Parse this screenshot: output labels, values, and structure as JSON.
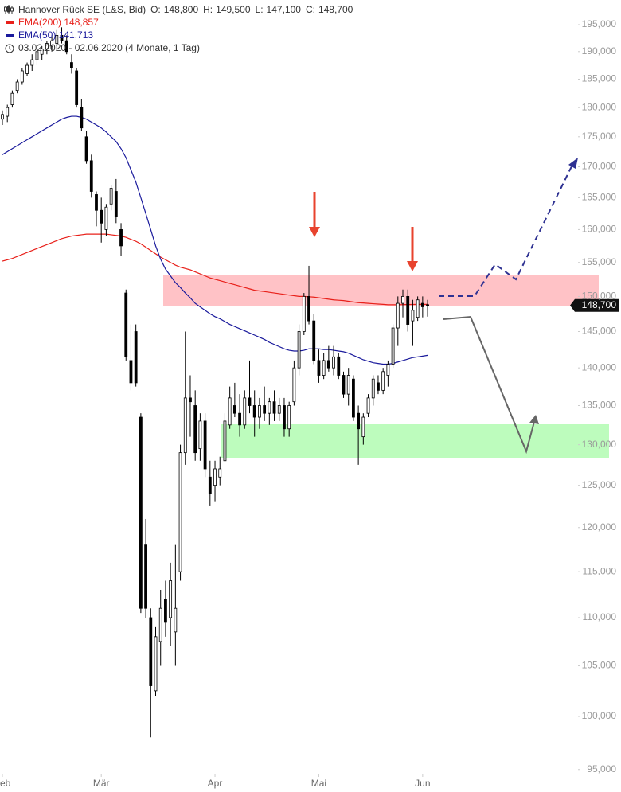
{
  "chart_data": {
    "type": "candlestick",
    "title": "Hannover Rück SE (L&S, Bid)",
    "quote": [
      {
        "key": "O:",
        "value": "148,800"
      },
      {
        "key": "H:",
        "value": "149,500"
      },
      {
        "key": "L:",
        "value": "147,100"
      },
      {
        "key": "C:",
        "value": "148,700"
      }
    ],
    "date_range": "03.02.2020 - 02.06.2020",
    "period": "(4 Monate, 1 Tag)",
    "log_scale": true,
    "grid": false,
    "up_color": "#ffffff",
    "down_color": "#000000",
    "ylim": [
      94400,
      199700
    ],
    "yticks": [
      {
        "value": 195000,
        "label": "195,000"
      },
      {
        "value": 190000,
        "label": "190,000"
      },
      {
        "value": 185000,
        "label": "185,000"
      },
      {
        "value": 180000,
        "label": "180,000"
      },
      {
        "value": 175000,
        "label": "175,000"
      },
      {
        "value": 170000,
        "label": "170,000"
      },
      {
        "value": 165000,
        "label": "165,000"
      },
      {
        "value": 160000,
        "label": "160,000"
      },
      {
        "value": 155000,
        "label": "155,000"
      },
      {
        "value": 150000,
        "label": "150,000"
      },
      {
        "value": 145000,
        "label": "145,000"
      },
      {
        "value": 140000,
        "label": "140,000"
      },
      {
        "value": 135000,
        "label": "135,000"
      },
      {
        "value": 130000,
        "label": "130,000"
      },
      {
        "value": 125000,
        "label": "125,000"
      },
      {
        "value": 120000,
        "label": "120,000"
      },
      {
        "value": 115000,
        "label": "115,000"
      },
      {
        "value": 110000,
        "label": "110,000"
      },
      {
        "value": 105000,
        "label": "105,000"
      },
      {
        "value": 100000,
        "label": "100,000"
      },
      {
        "value": 95000,
        "label": "95,000"
      }
    ],
    "last_price": {
      "value": 148700,
      "label": "148,700"
    },
    "categories": [
      "Feb",
      null,
      null,
      null,
      null,
      null,
      null,
      null,
      null,
      null,
      null,
      null,
      null,
      null,
      null,
      null,
      null,
      null,
      null,
      null,
      "Mär",
      null,
      null,
      null,
      null,
      null,
      null,
      null,
      null,
      null,
      null,
      null,
      null,
      null,
      null,
      null,
      null,
      null,
      null,
      null,
      null,
      null,
      null,
      "Apr",
      null,
      null,
      null,
      null,
      null,
      null,
      null,
      null,
      null,
      null,
      null,
      null,
      null,
      null,
      null,
      null,
      null,
      null,
      null,
      null,
      "Mai",
      null,
      null,
      null,
      null,
      null,
      null,
      null,
      null,
      null,
      null,
      null,
      null,
      null,
      null,
      null,
      null,
      null,
      null,
      null,
      null,
      "Jun",
      null
    ],
    "ohlc": [
      [
        178000,
        179500,
        177000,
        178800
      ],
      [
        178500,
        180500,
        177500,
        180000
      ],
      [
        180500,
        183000,
        180000,
        182500
      ],
      [
        183000,
        185000,
        182500,
        184500
      ],
      [
        184500,
        187000,
        184000,
        186500
      ],
      [
        186000,
        188000,
        185500,
        187500
      ],
      [
        187500,
        189500,
        186500,
        188500
      ],
      [
        188500,
        190500,
        187500,
        190000
      ],
      [
        189500,
        191000,
        188500,
        190500
      ],
      [
        190500,
        192000,
        189500,
        191500
      ],
      [
        191000,
        193000,
        190000,
        192000
      ],
      [
        191500,
        194000,
        190500,
        193000
      ],
      [
        193000,
        194500,
        191500,
        192000
      ],
      [
        192000,
        193000,
        189500,
        190000
      ],
      [
        188000,
        189500,
        186000,
        187000
      ],
      [
        186500,
        187000,
        180000,
        180500
      ],
      [
        180000,
        181500,
        176000,
        176500
      ],
      [
        175000,
        176000,
        170500,
        171000
      ],
      [
        171000,
        172000,
        165000,
        166000
      ],
      [
        165500,
        166000,
        160500,
        163000
      ],
      [
        163000,
        165000,
        158000,
        161000
      ],
      [
        160000,
        164000,
        159000,
        163500
      ],
      [
        164000,
        167000,
        163000,
        166500
      ],
      [
        166000,
        168000,
        161000,
        162000
      ],
      [
        160000,
        161000,
        156000,
        157500
      ],
      [
        150500,
        151000,
        141000,
        141500
      ],
      [
        141000,
        146000,
        137000,
        138000
      ],
      [
        145000,
        146000,
        137500,
        138000
      ],
      [
        133500,
        134000,
        110500,
        111000
      ],
      [
        118000,
        121000,
        110000,
        111000
      ],
      [
        110000,
        111000,
        98000,
        103000
      ],
      [
        102500,
        109000,
        102000,
        108000
      ],
      [
        107500,
        113000,
        105000,
        111000
      ],
      [
        112000,
        114000,
        108000,
        109500
      ],
      [
        110000,
        116000,
        107000,
        114000
      ],
      [
        108500,
        118000,
        105000,
        111000
      ],
      [
        115000,
        130000,
        114000,
        129000
      ],
      [
        129000,
        145000,
        127500,
        136000
      ],
      [
        136000,
        139000,
        131000,
        135500
      ],
      [
        135000,
        137000,
        128000,
        129000
      ],
      [
        129500,
        134000,
        128000,
        133000
      ],
      [
        133000,
        134000,
        126000,
        127000
      ],
      [
        126000,
        128000,
        122500,
        124000
      ],
      [
        125000,
        128000,
        123000,
        127000
      ],
      [
        126000,
        128500,
        125000,
        127000
      ],
      [
        128000,
        134000,
        128000,
        133000
      ],
      [
        132500,
        137500,
        132000,
        136000
      ],
      [
        135000,
        138000,
        133500,
        134000
      ],
      [
        134000,
        136500,
        131000,
        132500
      ],
      [
        132500,
        137000,
        132000,
        136000
      ],
      [
        136000,
        141000,
        134000,
        135000
      ],
      [
        135000,
        137000,
        131000,
        133500
      ],
      [
        133500,
        136000,
        132000,
        135000
      ],
      [
        135000,
        137500,
        133000,
        134000
      ],
      [
        134000,
        136000,
        132500,
        135500
      ],
      [
        135500,
        137000,
        133000,
        134000
      ],
      [
        134000,
        136000,
        133000,
        135000
      ],
      [
        135000,
        136000,
        131000,
        132000
      ],
      [
        132000,
        135500,
        131000,
        135000
      ],
      [
        135500,
        141000,
        135000,
        140000
      ],
      [
        140000,
        146000,
        139000,
        145000
      ],
      [
        145000,
        150500,
        144500,
        150000
      ],
      [
        150000,
        154500,
        146000,
        146500
      ],
      [
        146500,
        147500,
        140500,
        141000
      ],
      [
        141000,
        142500,
        138000,
        139000
      ],
      [
        139000,
        142000,
        138500,
        141000
      ],
      [
        141000,
        143000,
        139500,
        140000
      ],
      [
        140000,
        143000,
        139000,
        141500
      ],
      [
        141500,
        142000,
        138500,
        139000
      ],
      [
        139000,
        139500,
        136000,
        136500
      ],
      [
        136500,
        140000,
        135000,
        139000
      ],
      [
        138500,
        139000,
        133000,
        133500
      ],
      [
        134000,
        135000,
        127500,
        132000
      ],
      [
        131000,
        134000,
        130000,
        133500
      ],
      [
        134000,
        136500,
        133500,
        136000
      ],
      [
        136000,
        139000,
        135000,
        138500
      ],
      [
        138000,
        139000,
        136500,
        137000
      ],
      [
        137000,
        140000,
        136500,
        139500
      ],
      [
        139000,
        141000,
        137500,
        140500
      ],
      [
        140500,
        146000,
        140000,
        145500
      ],
      [
        145500,
        150000,
        143000,
        149000
      ],
      [
        149000,
        151000,
        147000,
        150000
      ],
      [
        150000,
        151000,
        145000,
        146000
      ],
      [
        146500,
        149500,
        143000,
        148000
      ],
      [
        147000,
        150000,
        146500,
        149500
      ],
      [
        149000,
        150000,
        147000,
        148500
      ],
      [
        148800,
        149500,
        147100,
        148700
      ]
    ],
    "series": [
      {
        "name": "EMA(200)",
        "color": "#e8201a",
        "legend_value": {
          "value": 148857,
          "label": "148,857"
        },
        "values": [
          155200,
          155400,
          155600,
          155900,
          156200,
          156500,
          156800,
          157100,
          157400,
          157700,
          158000,
          158300,
          158600,
          158800,
          159000,
          159100,
          159200,
          159300,
          159300,
          159300,
          159300,
          159300,
          159200,
          159100,
          159000,
          158800,
          158500,
          158200,
          157800,
          157300,
          156800,
          156300,
          155800,
          155400,
          155000,
          154600,
          154300,
          154100,
          153900,
          153600,
          153300,
          153000,
          152700,
          152500,
          152300,
          152100,
          151900,
          151700,
          151500,
          151300,
          151100,
          150900,
          150800,
          150700,
          150600,
          150500,
          150400,
          150300,
          150200,
          150100,
          150000,
          150000,
          149950,
          149900,
          149800,
          149700,
          149600,
          149500,
          149450,
          149400,
          149300,
          149200,
          149100,
          149050,
          149000,
          148950,
          148900,
          148850,
          148800,
          148800,
          148800,
          148820,
          148830,
          148840,
          148850,
          148855,
          148857
        ]
      },
      {
        "name": "EMA(50)",
        "color": "#1a1a9c",
        "legend_value": {
          "value": 141713,
          "label": "141,713"
        },
        "values": [
          172000,
          172500,
          173000,
          173500,
          174000,
          174500,
          175000,
          175500,
          176000,
          176500,
          177000,
          177500,
          178000,
          178300,
          178500,
          178500,
          178300,
          178000,
          177500,
          177000,
          176500,
          175800,
          175000,
          174200,
          173000,
          171500,
          169500,
          167500,
          165000,
          162500,
          160000,
          157500,
          155500,
          154000,
          153000,
          152000,
          151300,
          150500,
          149800,
          149000,
          148500,
          148000,
          147500,
          147100,
          146800,
          146400,
          146000,
          145700,
          145400,
          145100,
          144800,
          144500,
          144200,
          143900,
          143500,
          143200,
          142900,
          142600,
          142400,
          142300,
          142300,
          142400,
          142600,
          142600,
          142600,
          142500,
          142500,
          142400,
          142300,
          142200,
          142000,
          141700,
          141400,
          141100,
          140900,
          140700,
          140600,
          140500,
          140500,
          140600,
          140800,
          141000,
          141200,
          141400,
          141500,
          141600,
          141713
        ]
      }
    ]
  }
}
